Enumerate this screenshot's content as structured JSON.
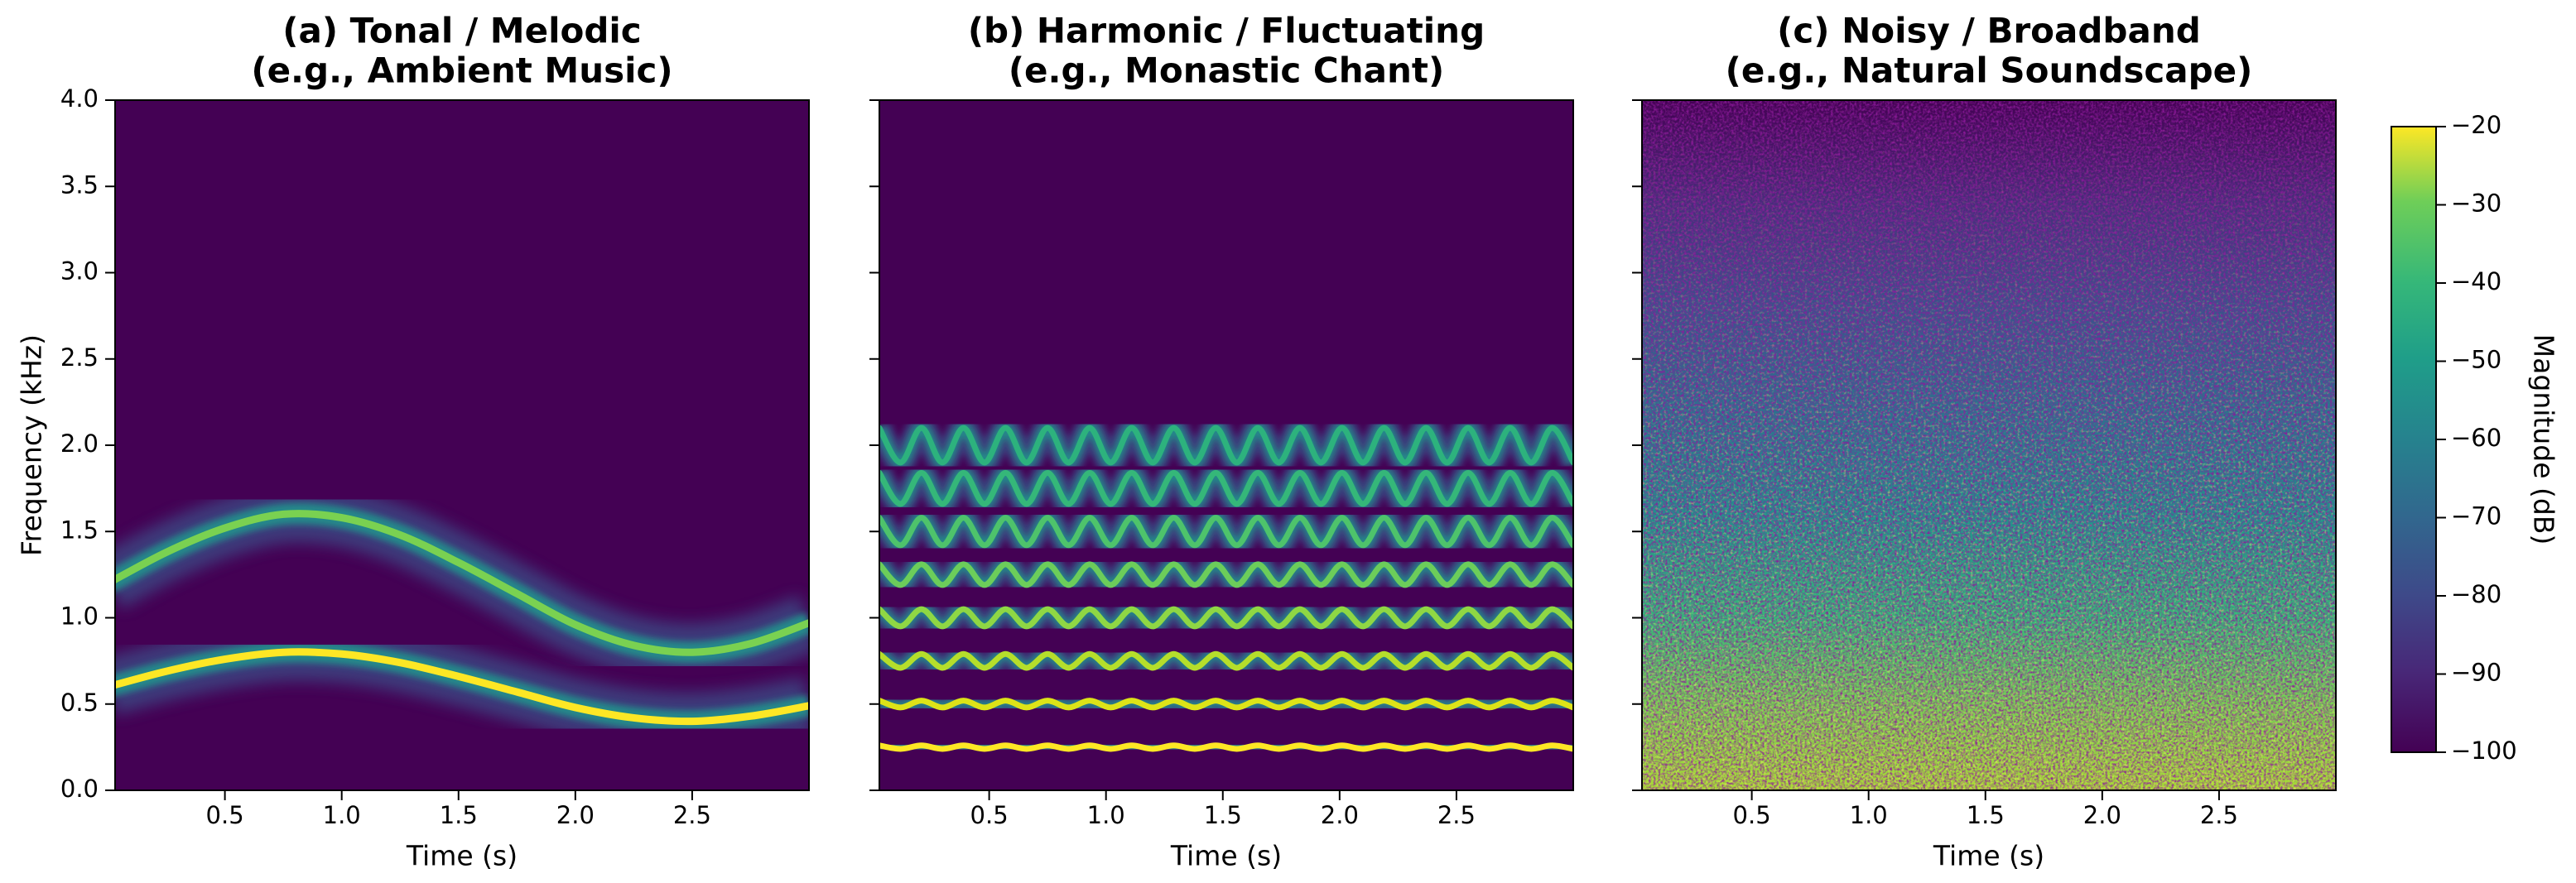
{
  "chart_data": [
    {
      "type": "line",
      "title": "(a) Tonal / Melodic",
      "subtitle": "(e.g., Ambient Music)",
      "x_label": "Time (s)",
      "y_label": "Frequency (kHz)",
      "xlim": [
        0.03,
        3.0
      ],
      "ylim": [
        0,
        4
      ],
      "xticks": [
        0.5,
        {
          "value": 1,
          "label": "1.0"
        },
        1.5,
        {
          "value": 2,
          "label": "2.0"
        },
        2.5
      ],
      "yticks": [
        {
          "value": 0,
          "label": "0.0"
        },
        0.5,
        {
          "value": 1,
          "label": "1.0"
        },
        1.5,
        {
          "value": 2,
          "label": "2.0"
        },
        2.5,
        {
          "value": 3,
          "label": "3.0"
        },
        3.5,
        {
          "value": 4,
          "label": "4.0"
        }
      ],
      "background": "#440154",
      "x": [
        0,
        0.25,
        0.5,
        0.75,
        1,
        1.25,
        1.5,
        1.75,
        2,
        2.25,
        2.5,
        2.75,
        3
      ],
      "series": [
        {
          "color": "#fde725",
          "values": [
            0.6,
            0.69,
            0.76,
            0.8,
            0.79,
            0.74,
            0.66,
            0.57,
            0.48,
            0.42,
            0.4,
            0.43,
            0.49
          ]
        },
        {
          "color": "#7ad151",
          "values": [
            1.2,
            1.38,
            1.52,
            1.6,
            1.58,
            1.48,
            1.32,
            1.14,
            0.96,
            0.84,
            0.8,
            0.85,
            0.97
          ]
        }
      ]
    },
    {
      "type": "line",
      "title": "(b) Harmonic / Fluctuating",
      "subtitle": "(e.g., Monastic Chant)",
      "x_label": "Time (s)",
      "xlim": [
        0.03,
        3.0
      ],
      "ylim": [
        0,
        4
      ],
      "xticks": [
        0.5,
        {
          "value": 1,
          "label": "1.0"
        },
        1.5,
        {
          "value": 2,
          "label": "2.0"
        },
        2.5
      ],
      "yticks": [
        0,
        0.5,
        1,
        1.5,
        2,
        2.5,
        3,
        3.5,
        4
      ],
      "background": "#440154",
      "x": [
        0.03,
        0.12,
        0.21,
        0.3,
        0.39,
        0.48,
        0.57,
        0.66,
        0.75,
        0.84,
        0.93,
        1.02,
        1.11,
        1.2,
        1.29,
        1.38,
        1.47,
        1.56,
        1.65,
        1.74,
        1.83,
        1.92,
        2.01,
        2.1,
        2.19,
        2.28,
        2.37,
        2.46,
        2.55,
        2.64,
        2.73,
        2.82,
        2.91,
        3.0
      ],
      "series": [
        {
          "color": "#fde725",
          "values": [
            0.26,
            0.24,
            0.26,
            0.24,
            0.26,
            0.24,
            0.26,
            0.24,
            0.26,
            0.24,
            0.26,
            0.24,
            0.26,
            0.24,
            0.26,
            0.24,
            0.26,
            0.24,
            0.26,
            0.24,
            0.26,
            0.24,
            0.26,
            0.24,
            0.26,
            0.24,
            0.26,
            0.24,
            0.26,
            0.24,
            0.26,
            0.24,
            0.26,
            0.24
          ]
        },
        {
          "color": "#dde318",
          "values": [
            0.52,
            0.48,
            0.52,
            0.48,
            0.52,
            0.48,
            0.52,
            0.48,
            0.52,
            0.48,
            0.52,
            0.48,
            0.52,
            0.48,
            0.52,
            0.48,
            0.52,
            0.48,
            0.52,
            0.48,
            0.52,
            0.48,
            0.52,
            0.48,
            0.52,
            0.48,
            0.52,
            0.48,
            0.52,
            0.48,
            0.52,
            0.48,
            0.52,
            0.48
          ]
        },
        {
          "color": "#b5de2b",
          "values": [
            0.79,
            0.71,
            0.79,
            0.71,
            0.79,
            0.71,
            0.79,
            0.71,
            0.79,
            0.71,
            0.79,
            0.71,
            0.79,
            0.71,
            0.79,
            0.71,
            0.79,
            0.71,
            0.79,
            0.71,
            0.79,
            0.71,
            0.79,
            0.71,
            0.79,
            0.71,
            0.79,
            0.71,
            0.79,
            0.71,
            0.79,
            0.71,
            0.79,
            0.71
          ]
        },
        {
          "color": "#8fd744",
          "values": [
            1.05,
            0.95,
            1.05,
            0.95,
            1.05,
            0.95,
            1.05,
            0.95,
            1.05,
            0.95,
            1.05,
            0.95,
            1.05,
            0.95,
            1.05,
            0.95,
            1.05,
            0.95,
            1.05,
            0.95,
            1.05,
            0.95,
            1.05,
            0.95,
            1.05,
            0.95,
            1.05,
            0.95,
            1.05,
            0.95,
            1.05,
            0.95,
            1.05,
            0.95
          ]
        },
        {
          "color": "#6ccd5a",
          "values": [
            1.31,
            1.19,
            1.31,
            1.19,
            1.31,
            1.19,
            1.31,
            1.19,
            1.31,
            1.19,
            1.31,
            1.19,
            1.31,
            1.19,
            1.31,
            1.19,
            1.31,
            1.19,
            1.31,
            1.19,
            1.31,
            1.19,
            1.31,
            1.19,
            1.31,
            1.19,
            1.31,
            1.19,
            1.31,
            1.19,
            1.31,
            1.19,
            1.31,
            1.19
          ]
        },
        {
          "color": "#4ec36b",
          "values": [
            1.58,
            1.42,
            1.58,
            1.42,
            1.58,
            1.42,
            1.58,
            1.42,
            1.58,
            1.42,
            1.58,
            1.42,
            1.58,
            1.42,
            1.58,
            1.42,
            1.58,
            1.42,
            1.58,
            1.42,
            1.58,
            1.42,
            1.58,
            1.42,
            1.58,
            1.42,
            1.58,
            1.42,
            1.58,
            1.42,
            1.58,
            1.42,
            1.58,
            1.42
          ]
        },
        {
          "color": "#35b779",
          "values": [
            1.84,
            1.66,
            1.84,
            1.66,
            1.84,
            1.66,
            1.84,
            1.66,
            1.84,
            1.66,
            1.84,
            1.66,
            1.84,
            1.66,
            1.84,
            1.66,
            1.84,
            1.66,
            1.84,
            1.66,
            1.84,
            1.66,
            1.84,
            1.66,
            1.84,
            1.66,
            1.84,
            1.66,
            1.84,
            1.66,
            1.84,
            1.66,
            1.84,
            1.66
          ]
        },
        {
          "color": "#2db27d",
          "values": [
            2.1,
            1.9,
            2.1,
            1.9,
            2.1,
            1.9,
            2.1,
            1.9,
            2.1,
            1.9,
            2.1,
            1.9,
            2.1,
            1.9,
            2.1,
            1.9,
            2.1,
            1.9,
            2.1,
            1.9,
            2.1,
            1.9,
            2.1,
            1.9,
            2.1,
            1.9,
            2.1,
            1.9,
            2.1,
            1.9,
            2.1,
            1.9,
            2.1,
            1.9
          ]
        }
      ]
    },
    {
      "type": "heatmap",
      "title": "(c) Noisy / Broadband",
      "subtitle": "(e.g., Natural Soundscape)",
      "x_label": "Time (s)",
      "xlim": [
        0.03,
        3.0
      ],
      "ylim": [
        0,
        4
      ],
      "xticks": [
        0.5,
        {
          "value": 1,
          "label": "1.0"
        },
        1.5,
        {
          "value": 2,
          "label": "2.0"
        },
        2.5
      ],
      "yticks": [
        0,
        0.5,
        1,
        1.5,
        2,
        2.5,
        3,
        3.5,
        4
      ],
      "colorbar": {
        "label": "Magnitude (dB)",
        "lim": [
          -100,
          -20
        ],
        "ticks": [
          {
            "value": -100,
            "label": "−100"
          },
          {
            "value": -90,
            "label": "−90"
          },
          {
            "value": -80,
            "label": "−80"
          },
          {
            "value": -70,
            "label": "−70"
          },
          {
            "value": -60,
            "label": "−60"
          },
          {
            "value": -50,
            "label": "−50"
          },
          {
            "value": -40,
            "label": "−40"
          },
          {
            "value": -30,
            "label": "−30"
          },
          {
            "value": -20,
            "label": "−20"
          }
        ]
      }
    }
  ]
}
